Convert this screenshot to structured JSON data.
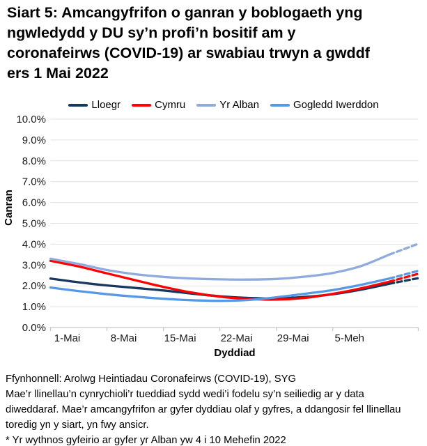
{
  "header": {
    "title": "Siart 5: Amcangyfrifon o ganran y boblogaeth yng\nngwledydd y DU sy’n profi’n bositif am y\ncoronafeirws (COVID-19) ar swabiau trwyn a gwddf\ners 1 Mai 2022"
  },
  "chart_data": {
    "type": "line",
    "title": "Siart 5: Amcangyfrifon o ganran y boblogaeth yng ngwledydd y DU sy’n profi’n bositif am y coronafeirws (COVID-19) ar swabiau trwyn a gwddf ers 1 Mai 2022",
    "xlabel": "Dyddiad",
    "ylabel": "Canran",
    "ylim": [
      0,
      10
    ],
    "grid": true,
    "legend_position": "top",
    "x_axis_end_day": 45.6,
    "dashed_from_day": 42,
    "dashed_meaning": "llinellau toredig = amcangyfrifon mwy ansicr ar gyfer dyddiau olaf y gyfres",
    "y_ticks": [
      {
        "v": 0,
        "label": "0.0%"
      },
      {
        "v": 1,
        "label": "1.0%"
      },
      {
        "v": 2,
        "label": "2.0%"
      },
      {
        "v": 3,
        "label": "3.0%"
      },
      {
        "v": 4,
        "label": "4.0%"
      },
      {
        "v": 5,
        "label": "5.0%"
      },
      {
        "v": 6,
        "label": "6.0%"
      },
      {
        "v": 7,
        "label": "7.0%"
      },
      {
        "v": 8,
        "label": "8.0%"
      },
      {
        "v": 9,
        "label": "9.0%"
      },
      {
        "v": 10,
        "label": "10.0%"
      }
    ],
    "x_ticks": [
      {
        "day": 0,
        "label": "1-Mai"
      },
      {
        "day": 7,
        "label": "8-Mai"
      },
      {
        "day": 14,
        "label": "15-Mai"
      },
      {
        "day": 21,
        "label": "22-Mai"
      },
      {
        "day": 28,
        "label": "29-Mai"
      },
      {
        "day": 35,
        "label": "5-Meh"
      }
    ],
    "x_days": [
      0,
      3.5,
      7,
      10.5,
      14,
      17.5,
      21,
      24.5,
      28,
      31.5,
      35,
      38.5,
      42,
      45.6
    ],
    "series": [
      {
        "name": "Lloegr",
        "color": "#17375E",
        "values": [
          2.35,
          2.17,
          2.02,
          1.9,
          1.78,
          1.63,
          1.5,
          1.42,
          1.4,
          1.47,
          1.6,
          1.82,
          2.1,
          2.37
        ]
      },
      {
        "name": "Cymru",
        "color": "#FF0000",
        "values": [
          3.2,
          2.93,
          2.6,
          2.27,
          1.95,
          1.68,
          1.48,
          1.37,
          1.34,
          1.42,
          1.62,
          1.88,
          2.2,
          2.58
        ]
      },
      {
        "name": "Yr Alban",
        "color": "#8FAADC",
        "values": [
          3.3,
          3.05,
          2.76,
          2.56,
          2.43,
          2.35,
          2.31,
          2.3,
          2.33,
          2.44,
          2.62,
          2.95,
          3.5,
          4.02
        ]
      },
      {
        "name": "Gogledd Iwerddon",
        "color": "#5599E6",
        "values": [
          1.92,
          1.75,
          1.6,
          1.48,
          1.38,
          1.31,
          1.28,
          1.32,
          1.45,
          1.62,
          1.8,
          2.05,
          2.35,
          2.72
        ]
      }
    ],
    "colors": {
      "gridline": "#E2E2E2",
      "axis": "#C6C6C6",
      "tick_label": "#1A1A1A"
    }
  },
  "footer": {
    "source": "Ffynhonnell: Arolwg Heintiadau Coronafeirws (COVID-19), SYG",
    "note": "Mae’r llinellau’n cynrychioli’r tueddiad sydd wedi’i fodelu sy’n seiliedig ar y data\ndiweddaraf. Mae’r amcangyfrifon ar gyfer dyddiau olaf y gyfres, a ddangosir fel llinellau\ntoredig yn y siart, yn fwy ansicr.",
    "footnote": "* Yr wythnos gyfeirio ar gyfer yr Alban yw 4 i 10 Mehefin 2022"
  }
}
